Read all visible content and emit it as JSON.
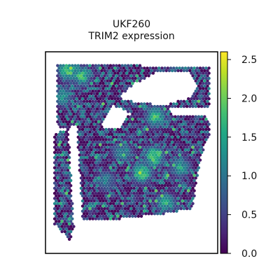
{
  "chart_data": {
    "type": "scatter",
    "title": "UKF260",
    "subtitle": "TRIM2 expression",
    "xlabel": "",
    "ylabel": "",
    "grid": false,
    "legend": "colorbar-right",
    "colormap": "viridis",
    "colorbar": {
      "min": 0.0,
      "max": 2.6,
      "ticks": [
        {
          "value": 0.0,
          "label": "0.0"
        },
        {
          "value": 0.5,
          "label": "0.5"
        },
        {
          "value": 1.0,
          "label": "1.0"
        },
        {
          "value": 1.5,
          "label": "1.5"
        },
        {
          "value": 2.0,
          "label": "2.0"
        },
        {
          "value": 2.5,
          "label": "2.5"
        }
      ]
    },
    "hotspots": [
      {
        "x": 0.13,
        "y": 0.91,
        "value": 2.5
      },
      {
        "x": 0.21,
        "y": 0.88,
        "value": 2.1
      },
      {
        "x": 0.64,
        "y": 0.68,
        "value": 2.2
      },
      {
        "x": 0.63,
        "y": 0.48,
        "value": 2.5
      },
      {
        "x": 0.56,
        "y": 0.4,
        "value": 2.4
      },
      {
        "x": 0.78,
        "y": 0.43,
        "value": 1.8
      },
      {
        "x": 0.7,
        "y": 0.25,
        "value": 1.9
      },
      {
        "x": 0.1,
        "y": 0.78,
        "value": 1.7
      },
      {
        "x": 0.45,
        "y": 0.5,
        "value": 1.6
      },
      {
        "x": 0.35,
        "y": 0.36,
        "value": 1.4
      }
    ],
    "colors": {
      "frame": "#000000",
      "background": "#ffffff"
    }
  }
}
